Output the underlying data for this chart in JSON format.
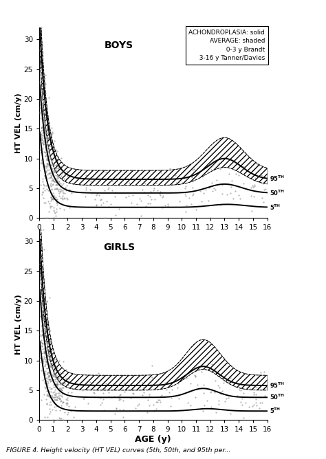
{
  "title_boys": "BOYS",
  "title_girls": "GIRLS",
  "xlabel": "AGE (y)",
  "ylabel": "HT VEL (cm/y)",
  "xlim": [
    0,
    16
  ],
  "ylim": [
    0,
    32
  ],
  "yticks": [
    0,
    5,
    10,
    15,
    20,
    25,
    30
  ],
  "xticks": [
    0,
    1,
    2,
    3,
    4,
    5,
    6,
    7,
    8,
    9,
    10,
    11,
    12,
    13,
    14,
    15,
    16
  ],
  "legend_text": "ACHONDROPLASIA: solid\nAVERAGE: shaded\n  0-3 y Brandt\n  3-16 y Tanner/Davies",
  "background_color": "#ffffff",
  "line_color": "#000000",
  "scatter_color": "#777777",
  "hatch_pattern": "////",
  "figure_caption": "FIGURE 4. Height velocity (HT VEL) curves (5th, 50th, and 95th per..."
}
